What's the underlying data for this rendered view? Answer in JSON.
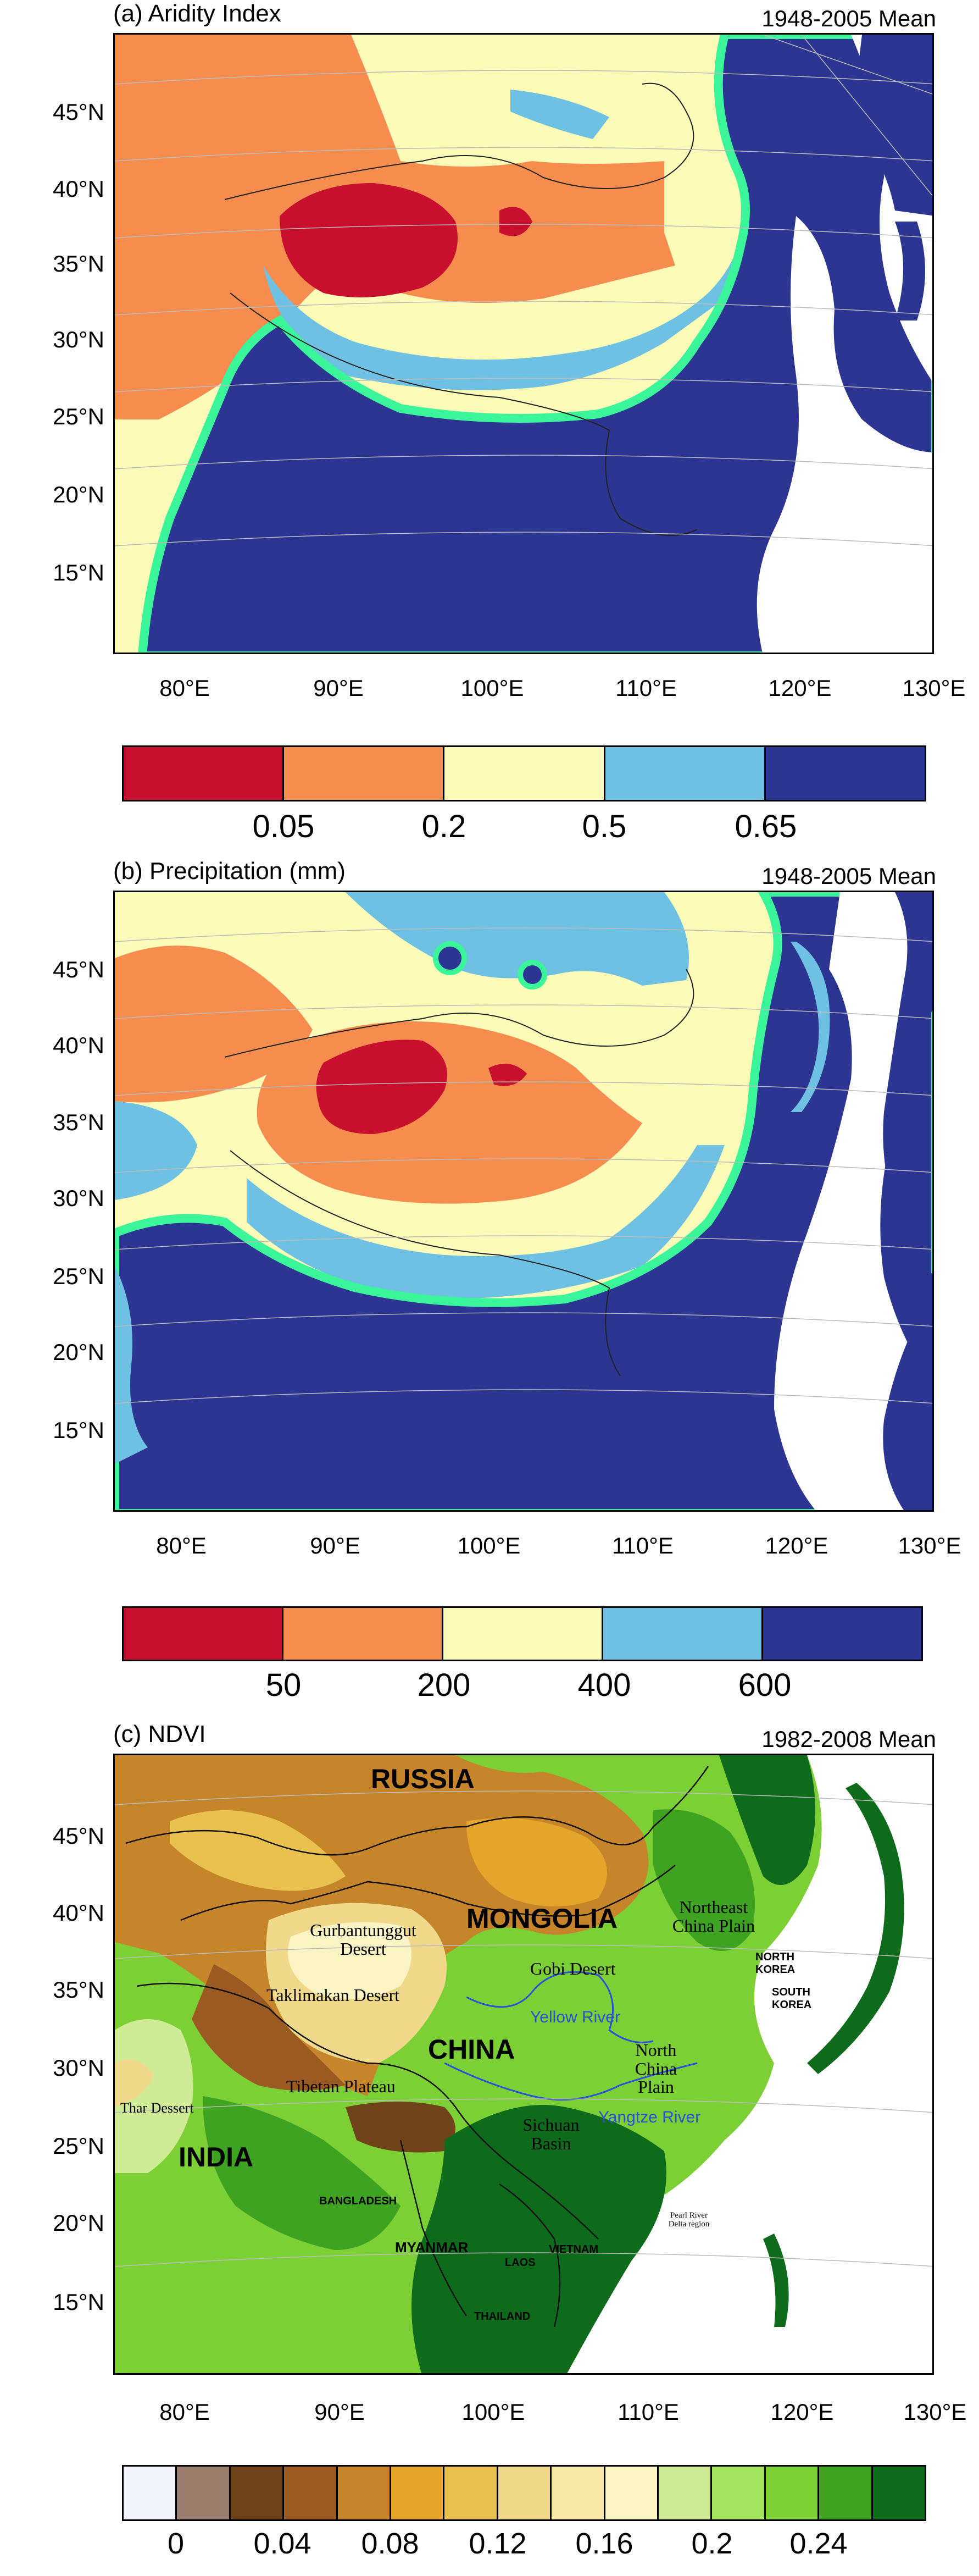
{
  "panels": {
    "a": {
      "title": "(a) Aridity Index",
      "period": "1948-2005 Mean",
      "colorbar_labels": [
        "0.05",
        "0.2",
        "0.5",
        "0.65"
      ],
      "colorbar_colors": [
        "#c8102e",
        "#f68c4e",
        "#fcfbb8",
        "#6ec1e2",
        "#2c3592"
      ],
      "contour_color": "#3af59a"
    },
    "b": {
      "title": "(b) Precipitation (mm)",
      "period": "1948-2005 Mean",
      "colorbar_labels": [
        "50",
        "200",
        "400",
        "600"
      ],
      "colorbar_colors": [
        "#c8102e",
        "#f68c4e",
        "#fcfbb8",
        "#6ec1e2",
        "#2c3592"
      ],
      "contour_color": "#3af59a"
    },
    "c": {
      "title": "(c) NDVI",
      "period": "1982-2008 Mean",
      "colorbar_labels": [
        "0",
        "0.04",
        "0.08",
        "0.12",
        "0.16",
        "0.2",
        "0.24"
      ],
      "colorbar_colors": [
        "#f2f6fc",
        "#9b7d6d",
        "#6f4319",
        "#9b5a22",
        "#c6852a",
        "#e4a52a",
        "#e8c14f",
        "#f0d98a",
        "#f7eaa8",
        "#faf3c4",
        "#cfeb95",
        "#a3e45f",
        "#7ccf34",
        "#3da321",
        "#0f6b1c"
      ]
    }
  },
  "axes": {
    "lat_labels": [
      "45°N",
      "40°N",
      "35°N",
      "30°N",
      "25°N",
      "20°N",
      "15°N"
    ],
    "lon_labels": [
      "80°E",
      "90°E",
      "100°E",
      "110°E",
      "120°E",
      "130°E"
    ]
  },
  "ndvi_labels": {
    "countries": [
      "RUSSIA",
      "MONGOLIA",
      "CHINA",
      "INDIA"
    ],
    "regions": [
      "Gurbantunggut Desert",
      "Gobi Desert",
      "Taklimakan Desert",
      "Tibetan Plateau",
      "Thar Dessert",
      "Northeast China Plain",
      "North China Plain",
      "Sichuan Basin"
    ],
    "small_countries": [
      "NORTH KOREA",
      "SOUTH KOREA",
      "BANGLADESH",
      "MYANMAR",
      "LAOS",
      "VIETNAM",
      "THAILAND"
    ],
    "rivers": [
      "Yellow River",
      "Yangtze River"
    ],
    "delta": "Pearl River Delta region"
  }
}
